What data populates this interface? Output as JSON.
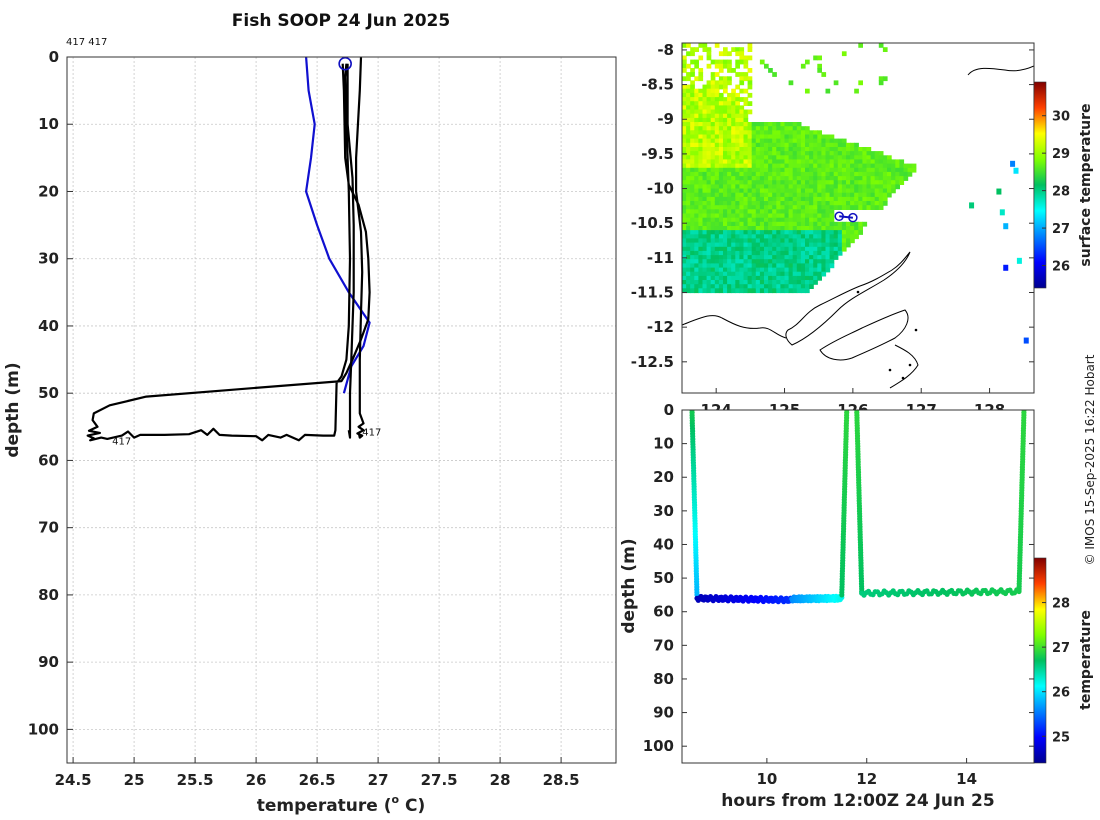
{
  "title": "Fish SOOP 24 Jun 2025",
  "copyright": "© IMOS 15-Sep-2025 16:22 Hobart",
  "colors": {
    "black": "#000000",
    "blue": "#1010d0",
    "marker": "#1010c0"
  },
  "chart_data": [
    {
      "type": "line",
      "name": "temperature-profile",
      "id_label": "417 417",
      "xlabel": "temperature (",
      "xlabel_sup": "o",
      "xlabel_tail": " C)",
      "ylabel": "depth (m)",
      "xlim": [
        24.45,
        28.95
      ],
      "ylim": [
        105,
        0
      ],
      "xticks": [
        24.5,
        25,
        25.5,
        26,
        26.5,
        27,
        27.5,
        28,
        28.5
      ],
      "xtick_labels": [
        "24.5",
        "25",
        "25.5",
        "26",
        "26.5",
        "27",
        "27.5",
        "28",
        "28.5"
      ],
      "yticks": [
        0,
        10,
        20,
        30,
        40,
        50,
        60,
        70,
        80,
        90,
        100
      ],
      "ytick_labels": [
        "0",
        "10",
        "20",
        "30",
        "40",
        "50",
        "60",
        "70",
        "80",
        "90",
        "100"
      ],
      "grid": true,
      "annotations": [
        {
          "text": "417",
          "x": 24.82,
          "y": 57.6
        },
        {
          "text": "417",
          "x": 26.87,
          "y": 56.3
        }
      ],
      "start_marker": {
        "x": 26.73,
        "y": 1
      },
      "series": [
        {
          "name": "climatology",
          "color": "#1010d0",
          "width": 2.2,
          "points": [
            [
              26.41,
              0
            ],
            [
              26.43,
              5
            ],
            [
              26.48,
              10
            ],
            [
              26.45,
              15
            ],
            [
              26.41,
              20
            ],
            [
              26.5,
              25
            ],
            [
              26.6,
              30
            ],
            [
              26.76,
              35
            ],
            [
              26.93,
              39.5
            ],
            [
              26.88,
              43
            ],
            [
              26.78,
              46
            ],
            [
              26.72,
              50
            ]
          ]
        },
        {
          "name": "profile-1",
          "color": "#000000",
          "width": 2.2,
          "points": [
            [
              26.71,
              1
            ],
            [
              26.72,
              5
            ],
            [
              26.73,
              15
            ],
            [
              26.76,
              19
            ],
            [
              26.84,
              22
            ],
            [
              26.9,
              26
            ],
            [
              26.92,
              30
            ],
            [
              26.93,
              35
            ],
            [
              26.92,
              39
            ],
            [
              26.86,
              42
            ],
            [
              26.79,
              45
            ],
            [
              26.74,
              47
            ],
            [
              26.7,
              48.2
            ],
            [
              25.8,
              49.5
            ],
            [
              25.1,
              50.5
            ],
            [
              24.8,
              51.8
            ],
            [
              24.67,
              53
            ],
            [
              24.66,
              54
            ],
            [
              24.7,
              55
            ],
            [
              24.63,
              55.6
            ],
            [
              24.72,
              55.9
            ],
            [
              24.62,
              56.3
            ],
            [
              24.67,
              56.7
            ],
            [
              24.64,
              57
            ],
            [
              24.73,
              56.6
            ],
            [
              24.78,
              56.8
            ],
            [
              24.9,
              56.3
            ],
            [
              24.95,
              55.7
            ],
            [
              25.0,
              56.6
            ],
            [
              25.05,
              56.2
            ],
            [
              25.25,
              56.2
            ],
            [
              25.45,
              56.1
            ],
            [
              25.55,
              55.5
            ],
            [
              25.6,
              56.2
            ],
            [
              25.65,
              55.3
            ],
            [
              25.7,
              56.2
            ],
            [
              25.8,
              56.3
            ],
            [
              26.0,
              56.4
            ],
            [
              26.05,
              57
            ],
            [
              26.1,
              56.2
            ],
            [
              26.2,
              56.6
            ],
            [
              26.25,
              56.2
            ],
            [
              26.35,
              57
            ],
            [
              26.4,
              56.2
            ],
            [
              26.55,
              56.3
            ],
            [
              26.64,
              56.3
            ],
            [
              26.65,
              55.5
            ],
            [
              26.66,
              48.5
            ],
            [
              26.7,
              47.5
            ],
            [
              26.74,
              45
            ],
            [
              26.76,
              40
            ],
            [
              26.77,
              30
            ],
            [
              26.76,
              20
            ],
            [
              26.74,
              10
            ],
            [
              26.73,
              3
            ],
            [
              26.74,
              1
            ]
          ]
        },
        {
          "name": "profile-2",
          "color": "#000000",
          "width": 2.2,
          "points": [
            [
              26.86,
              0
            ],
            [
              26.85,
              5
            ],
            [
              26.82,
              15
            ],
            [
              26.82,
              20
            ],
            [
              26.86,
              26
            ],
            [
              26.87,
              32
            ],
            [
              26.86,
              38
            ],
            [
              26.85,
              45
            ],
            [
              26.85,
              50
            ],
            [
              26.85,
              53
            ],
            [
              26.88,
              54.5
            ],
            [
              26.84,
              55
            ],
            [
              26.88,
              55.5
            ],
            [
              26.83,
              56
            ],
            [
              26.87,
              56.3
            ],
            [
              26.85,
              56.6
            ],
            [
              26.84,
              55.8
            ]
          ]
        },
        {
          "name": "profile-3",
          "color": "#000000",
          "width": 2.2,
          "points": [
            [
              26.75,
              1
            ],
            [
              26.75,
              10
            ],
            [
              26.79,
              18
            ],
            [
              26.8,
              25
            ],
            [
              26.8,
              35
            ],
            [
              26.78,
              45
            ],
            [
              26.77,
              50
            ],
            [
              26.77,
              56.6
            ],
            [
              26.76,
              55.5
            ]
          ]
        }
      ]
    },
    {
      "type": "heatmap",
      "name": "surface-temperature-map",
      "xlim": [
        123.5,
        128.65
      ],
      "ylim": [
        -12.95,
        -7.9
      ],
      "xticks": [
        124,
        125,
        126,
        127,
        128
      ],
      "xtick_labels": [
        "124",
        "125",
        "126",
        "127",
        "128"
      ],
      "yticks": [
        -8,
        -8.5,
        -9,
        -9.5,
        -10,
        -10.5,
        -11,
        -11.5,
        -12,
        -12.5
      ],
      "ytick_labels": [
        "-8",
        "-8.5",
        "-9",
        "-9.5",
        "-10",
        "-10.5",
        "-11",
        "-11.5",
        "-12",
        "-12.5"
      ],
      "colorbar_label": "surface temperature",
      "colorbar_range": [
        25.4,
        30.9
      ],
      "colorbar_ticks": [
        26,
        27,
        28,
        29,
        30
      ],
      "colorbar_tick_labels": [
        "26",
        "27",
        "28",
        "29",
        "30"
      ],
      "track": [
        [
          125.8,
          -10.4
        ],
        [
          126.0,
          -10.42
        ]
      ]
    },
    {
      "type": "scatter",
      "name": "depth-time-section",
      "xlabel": "hours from 12:00Z 24 Jun 25",
      "ylabel": "depth (m)",
      "xlim": [
        8.3,
        15.35
      ],
      "ylim": [
        105,
        0
      ],
      "xticks": [
        10,
        12,
        14
      ],
      "xtick_labels": [
        "10",
        "12",
        "14"
      ],
      "yticks": [
        0,
        10,
        20,
        30,
        40,
        50,
        60,
        70,
        80,
        90,
        100
      ],
      "ytick_labels": [
        "0",
        "10",
        "20",
        "30",
        "40",
        "50",
        "60",
        "70",
        "80",
        "90",
        "100"
      ],
      "colorbar_label": "temperature",
      "colorbar_range": [
        24.4,
        29
      ],
      "colorbar_ticks": [
        25,
        26,
        27,
        28
      ],
      "colorbar_tick_labels": [
        "25",
        "26",
        "27",
        "28"
      ],
      "segments": [
        {
          "x0": 8.5,
          "x1": 8.6,
          "d0": 0,
          "d1": 55,
          "t0": 26.8,
          "t1": 25.8
        },
        {
          "x0": 8.6,
          "x1": 10.5,
          "d0": 56,
          "d1": 56.5,
          "t0": 24.6,
          "t1": 25.2
        },
        {
          "x0": 10.5,
          "x1": 11.5,
          "d0": 56.2,
          "d1": 56,
          "t0": 25.6,
          "t1": 26.2
        },
        {
          "x0": 11.5,
          "x1": 11.6,
          "d0": 55,
          "d1": 0,
          "t0": 26.7,
          "t1": 26.9
        },
        {
          "x0": 11.8,
          "x1": 11.9,
          "d0": 0,
          "d1": 54,
          "t0": 26.9,
          "t1": 26.7
        },
        {
          "x0": 11.9,
          "x1": 15.05,
          "d0": 54.5,
          "d1": 54,
          "t0": 26.6,
          "t1": 26.8
        },
        {
          "x0": 15.05,
          "x1": 15.15,
          "d0": 54,
          "d1": 0,
          "t0": 26.8,
          "t1": 26.9
        }
      ]
    }
  ]
}
